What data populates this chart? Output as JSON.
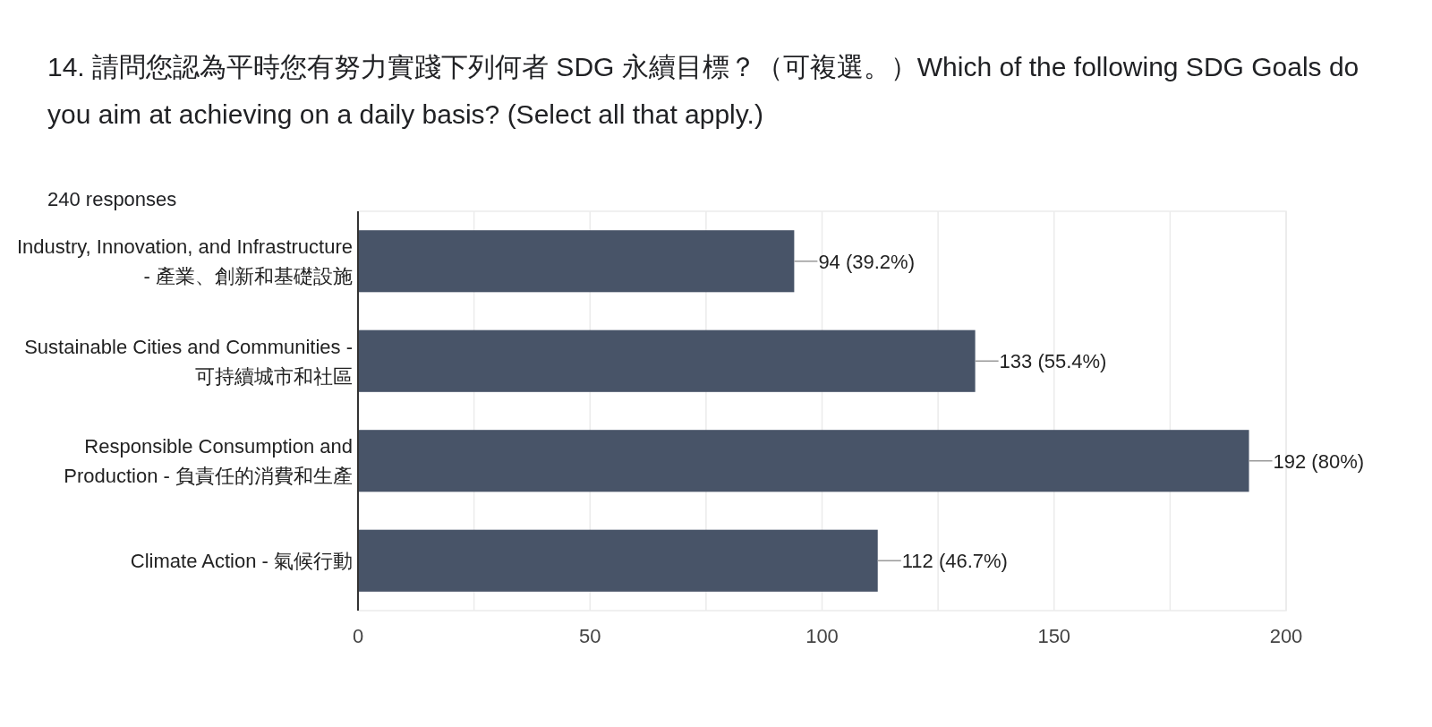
{
  "chart_data": {
    "type": "bar",
    "orientation": "horizontal",
    "title": "14. 請問您認為平時您有努力實踐下列何者 SDG 永續目標？（可複選。）Which of the following SDG Goals do you aim at achieving on a daily basis? (Select all that apply.)",
    "subtitle": "240 responses",
    "categories": [
      "Industry, Innovation, and Infrastructure - 產業、創新和基礎設施",
      "Sustainable Cities and Communities - 可持續城市和社區",
      "Responsible Consumption and Production - 負責任的消費和生產",
      "Climate Action - 氣候行動"
    ],
    "values": [
      94,
      133,
      192,
      112
    ],
    "value_labels": [
      "94 (39.2%)",
      "133 (55.4%)",
      "192 (80%)",
      "112 (46.7%)"
    ],
    "color": "#485468",
    "xlim": [
      0,
      200
    ],
    "xticks": [
      0,
      {
        "value": 25,
        "label": null
      },
      50,
      {
        "value": 75,
        "label": null
      },
      100,
      {
        "value": 125,
        "label": null
      },
      150,
      {
        "value": 175,
        "label": null
      },
      200
    ],
    "grid": "x"
  }
}
